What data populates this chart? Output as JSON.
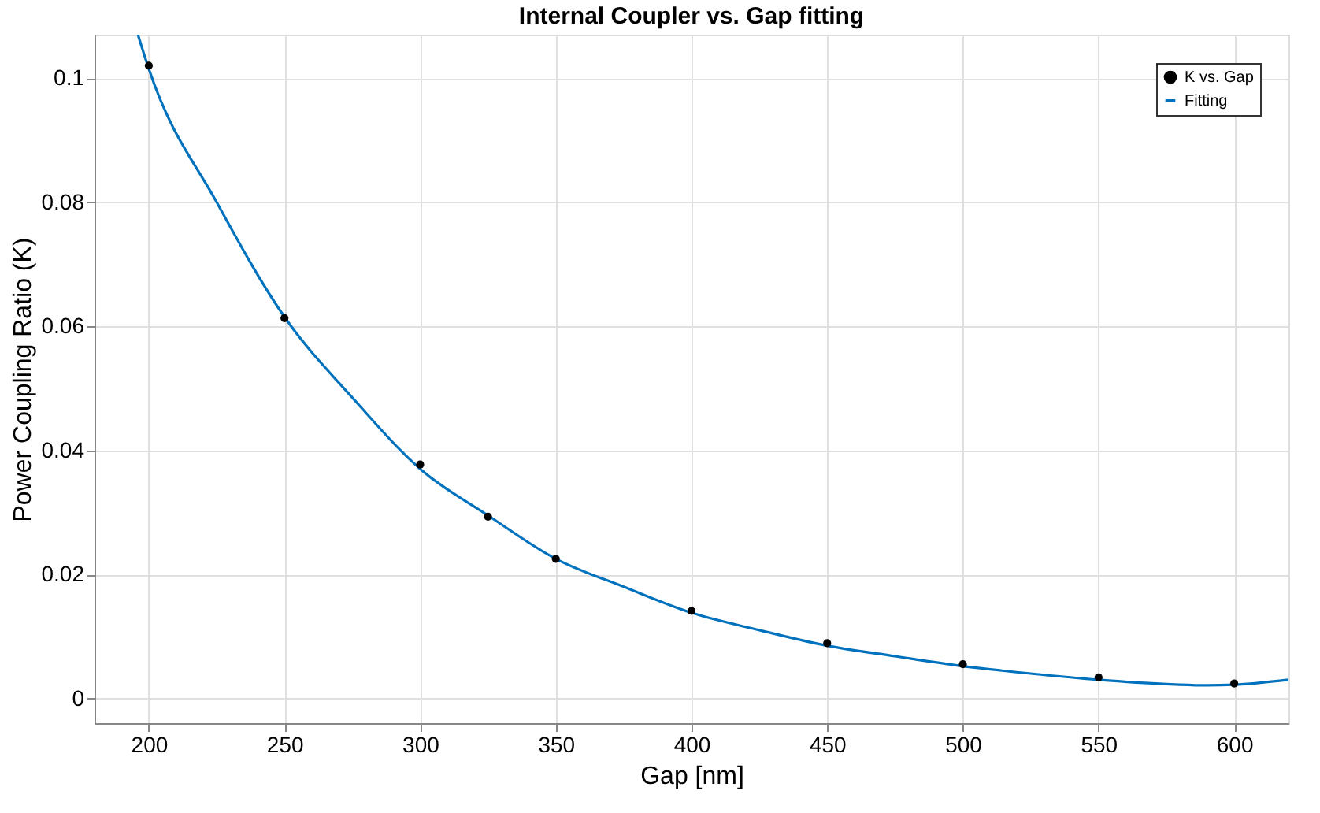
{
  "chart_data": {
    "type": "line",
    "title": "Internal Coupler vs. Gap fitting",
    "xlabel": "Gap [nm]",
    "ylabel": "Power Coupling Ratio (K)",
    "xlim": [
      180,
      620
    ],
    "xticks": [
      200,
      250,
      300,
      350,
      400,
      450,
      500,
      550,
      600
    ],
    "ylim": [
      -0.004,
      0.107
    ],
    "yticks": [
      0,
      0.02,
      0.04,
      0.06,
      0.08,
      0.1
    ],
    "grid": true,
    "legend": "top right",
    "series": [
      {
        "name": "K vs. Gap",
        "type": "scatter",
        "marker": "circle",
        "color": "#000000",
        "x": [
          200,
          250,
          300,
          325,
          350,
          400,
          450,
          500,
          550,
          600
        ],
        "values": [
          0.102,
          0.0613,
          0.0377,
          0.0293,
          0.0225,
          0.0141,
          0.0089,
          0.0055,
          0.0034,
          0.0024
        ]
      },
      {
        "name": "Fitting",
        "marker": "none",
        "line_style": "solid",
        "color": "#0072bd",
        "x": [
          196,
          200,
          225,
          250,
          275,
          300,
          325,
          350,
          375,
          400,
          425,
          450,
          475,
          500,
          525,
          550,
          575,
          590,
          600,
          620
        ],
        "values": [
          0.107,
          0.1015,
          0.08,
          0.0615,
          0.0485,
          0.037,
          0.0295,
          0.0225,
          0.018,
          0.0138,
          0.011,
          0.0085,
          0.0068,
          0.0052,
          0.004,
          0.003,
          0.0023,
          0.0021,
          0.0022,
          0.003
        ]
      }
    ]
  }
}
